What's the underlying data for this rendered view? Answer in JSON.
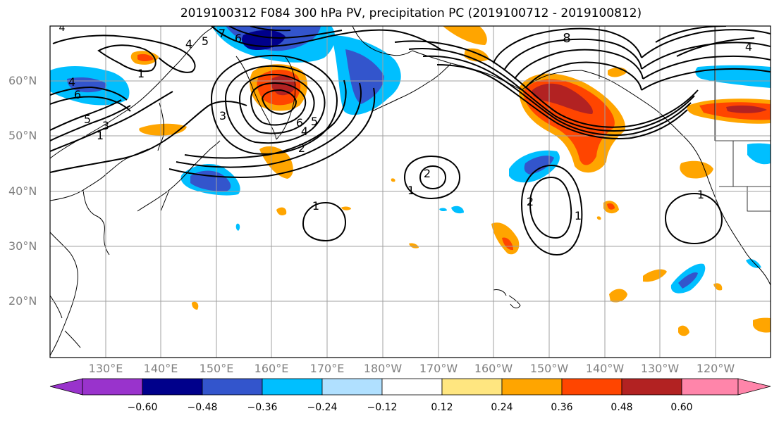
{
  "title": "2019100312 F084 300 hPa PV, precipitation PC (2019100712 - 2019100812)",
  "lat_labels": [
    "60°N",
    "50°N",
    "40°N",
    "30°N",
    "20°N"
  ],
  "lon_labels": [
    "130°E",
    "140°E",
    "150°E",
    "160°E",
    "170°E",
    "180°W",
    "170°W",
    "160°W",
    "150°W",
    "140°W",
    "130°W",
    "120°W"
  ],
  "contour_labels": [
    "4",
    "7",
    "6",
    "4",
    "5",
    "1",
    "4",
    "6",
    "5",
    "3",
    "1",
    "3",
    "6",
    "4",
    "5",
    "2",
    "2",
    "1",
    "1",
    "2",
    "1",
    "8",
    "4",
    "1"
  ],
  "colorbar": {
    "ticks": [
      "−0.60",
      "−0.48",
      "−0.36",
      "−0.24",
      "−0.12",
      "0.12",
      "0.24",
      "0.36",
      "0.48",
      "0.60"
    ],
    "colors": [
      "#9933cc",
      "#00008b",
      "#3355cc",
      "#00bfff",
      "#b0e0ff",
      "#ffffff",
      "#ffe680",
      "#ffa500",
      "#ff4500",
      "#b22222",
      "#ff85aa"
    ]
  },
  "colors": {
    "negative_strong": "#00008b",
    "negative_mid": "#3355cc",
    "negative_light": "#00bfff",
    "positive_light": "#ffa500",
    "positive_mid": "#ff4500",
    "positive_strong": "#b22222"
  }
}
